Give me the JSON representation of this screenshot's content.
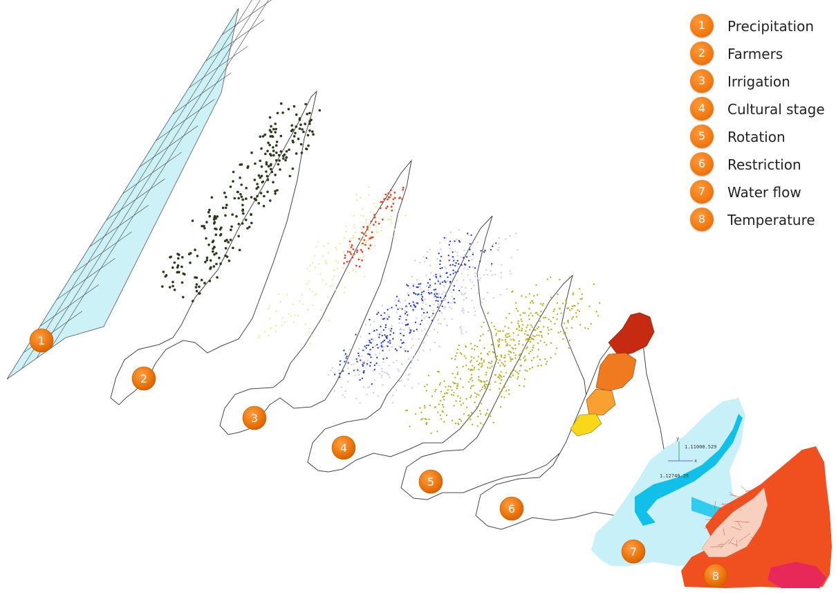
{
  "legend": [
    {
      "num": "1",
      "label": "Precipitation"
    },
    {
      "num": "2",
      "label": "Farmers"
    },
    {
      "num": "3",
      "label": "Irrigation"
    },
    {
      "num": "4",
      "label": "Cultural stage"
    },
    {
      "num": "5",
      "label": "Rotation"
    },
    {
      "num": "6",
      "label": "Restriction"
    },
    {
      "num": "7",
      "label": "Water flow"
    },
    {
      "num": "8",
      "label": "Temperature"
    }
  ],
  "layers": [
    {
      "num": "1",
      "name": "Precipitation"
    },
    {
      "num": "2",
      "name": "Farmers"
    },
    {
      "num": "3",
      "name": "Irrigation"
    },
    {
      "num": "4",
      "name": "Cultural stage"
    },
    {
      "num": "5",
      "name": "Rotation"
    },
    {
      "num": "6",
      "name": "Restriction"
    },
    {
      "num": "7",
      "name": "Water flow"
    },
    {
      "num": "8",
      "name": "Temperature"
    }
  ],
  "axis": {
    "label_y": "y",
    "label_x": "x",
    "coord_top": "1.11000.529",
    "coord_bottom": "1.12740.25"
  },
  "colors": {
    "badge": "#f07a10",
    "grid_fill": "#ccf2f7",
    "farmers_dots": "#2a3a1a",
    "irrigation_red": "#e8442a",
    "irrigation_yellow": "#e8f0a8",
    "cultural_blue": "#2a3ad8",
    "rotation_olive": "#b8b020",
    "restriction_dark": "#c62a10",
    "restriction_orange": "#f07a20",
    "restriction_yellow": "#f8d818",
    "water_light": "#c8f0f8",
    "water_dark": "#10c0e8",
    "temp_orange": "#f05020",
    "temp_pink": "#e82858"
  }
}
